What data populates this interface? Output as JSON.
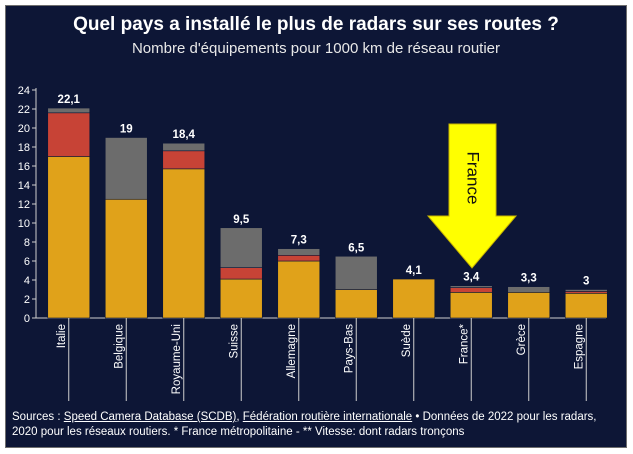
{
  "title": "Quel pays a installé le plus de radars sur ses routes ?",
  "subtitle": "Nombre d'équipements pour 1000 km de réseau routier",
  "annotation": "France",
  "colors": {
    "background": "#0d1636",
    "fixed": "#e0a21a",
    "red": "#c74336",
    "grey": "#6c6c6c",
    "arrow": "#ffff00"
  },
  "chart_data": {
    "type": "bar",
    "stacked": true,
    "categories": [
      "Italie",
      "Belgique",
      "Royaume-Uni",
      "Suisse",
      "Allemagne",
      "Pays-Bas",
      "Suède",
      "France*",
      "Grèce",
      "Espagne"
    ],
    "total_labels": [
      "22,1",
      "19",
      "18,4",
      "9,5",
      "7,3",
      "6,5",
      "4,1",
      "3,4",
      "3,3",
      "3"
    ],
    "series": [
      {
        "color": "#e0a21a",
        "values": [
          17,
          12.5,
          15.7,
          4.1,
          6.0,
          3.0,
          4.1,
          2.7,
          2.7,
          2.6
        ]
      },
      {
        "color": "#c74336",
        "values": [
          4.6,
          0,
          1.9,
          1.2,
          0.6,
          0,
          0,
          0.5,
          0,
          0.2
        ]
      },
      {
        "color": "#6c6c6c",
        "values": [
          0.5,
          6.5,
          0.8,
          4.2,
          0.7,
          3.5,
          0,
          0.2,
          0.6,
          0.2
        ]
      }
    ],
    "y_ticks": [
      "0",
      "2",
      "4",
      "6",
      "8",
      "10",
      "12",
      "14",
      "16",
      "18",
      "20",
      "22",
      "24"
    ],
    "ylim": [
      0,
      24
    ],
    "grid": false
  },
  "sources": {
    "prefix": "Sources : ",
    "link1": "Speed Camera Database (SCDB)",
    "sep": ", ",
    "link2": "Fédération routière internationale",
    "rest": " • Données de 2022 pour les radars, 2020 pour les réseaux routiers. * France métropolitaine - ** Vitesse: dont radars tronçons"
  }
}
